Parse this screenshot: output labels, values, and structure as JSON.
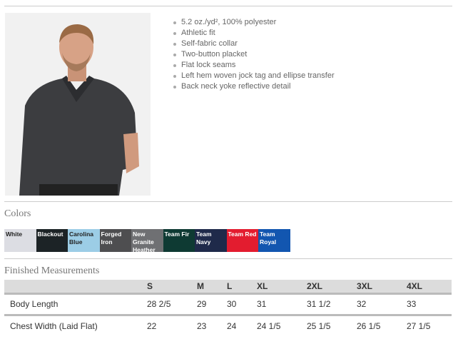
{
  "product": {
    "features": [
      "5.2 oz./yd², 100% polyester",
      "Athletic fit",
      "Self-fabric collar",
      "Two-button placket",
      "Flat lock seams",
      "Left hem woven jock tag and ellipse transfer",
      "Back neck yoke reflective detail"
    ]
  },
  "colors": {
    "title": "Colors",
    "swatches": [
      {
        "name": "White",
        "hex": "#dcdde3",
        "text": "#222"
      },
      {
        "name": "Blackout",
        "hex": "#1c2326",
        "text": "#fff"
      },
      {
        "name": "Carolina Blue",
        "hex": "#9ccde6",
        "text": "#222"
      },
      {
        "name": "Forged Iron",
        "hex": "#4e4e50",
        "text": "#fff"
      },
      {
        "name": "New Granite Heather",
        "hex": "#6f7073",
        "text": "#fff"
      },
      {
        "name": "Team Fir",
        "hex": "#0e3a33",
        "text": "#fff"
      },
      {
        "name": "Team Navy",
        "hex": "#1f2a4a",
        "text": "#fff"
      },
      {
        "name": "Team Red",
        "hex": "#e31c2f",
        "text": "#fff"
      },
      {
        "name": "Team Royal",
        "hex": "#1256b0",
        "text": "#fff"
      }
    ]
  },
  "measurements": {
    "title": "Finished Measurements",
    "headers": [
      "",
      "S",
      "M",
      "L",
      "XL",
      "2XL",
      "3XL",
      "4XL"
    ],
    "rows": [
      [
        "Body Length",
        "28 2/5",
        "29",
        "30",
        "31",
        "31 1/2",
        "32",
        "33"
      ],
      [
        "Chest Width (Laid Flat)",
        "22",
        "23",
        "24",
        "24 1/5",
        "25 1/5",
        "26 1/5",
        "27 1/5"
      ]
    ]
  }
}
